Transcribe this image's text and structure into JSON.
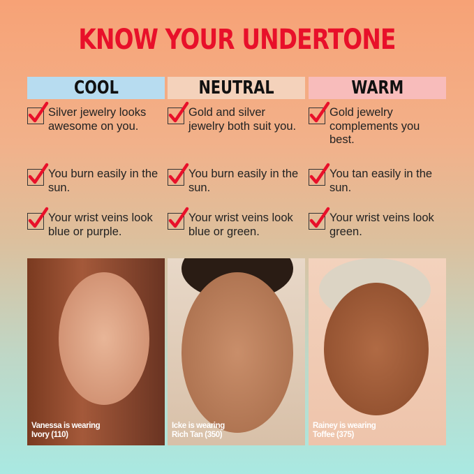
{
  "title": "KNOW YOUR UNDERTONE",
  "columns": [
    {
      "label": "COOL",
      "color": "#b7dcf0",
      "items": [
        "Silver jewelry looks awesome on you.",
        "You burn easily in the sun.",
        "Your wrist veins look blue or purple."
      ],
      "caption": [
        "Vanessa is wearing",
        "Ivory (110)"
      ]
    },
    {
      "label": "NEUTRAL",
      "color": "#f4d2bb",
      "items": [
        "Gold and silver jewelry both suit you.",
        "You burn easily in the sun.",
        "Your wrist veins look blue or green."
      ],
      "caption": [
        "Icke is wearing",
        "Rich Tan (350)"
      ]
    },
    {
      "label": "WARM",
      "color": "#f8bcbb",
      "items": [
        "Gold jewelry complements you best.",
        "You tan easily in the sun.",
        "Your wrist veins look green."
      ],
      "caption": [
        "Rainey is wearing",
        "Toffee (375)"
      ]
    }
  ],
  "check_icon": "checkbox-checked-icon",
  "accent": "#e8102a"
}
